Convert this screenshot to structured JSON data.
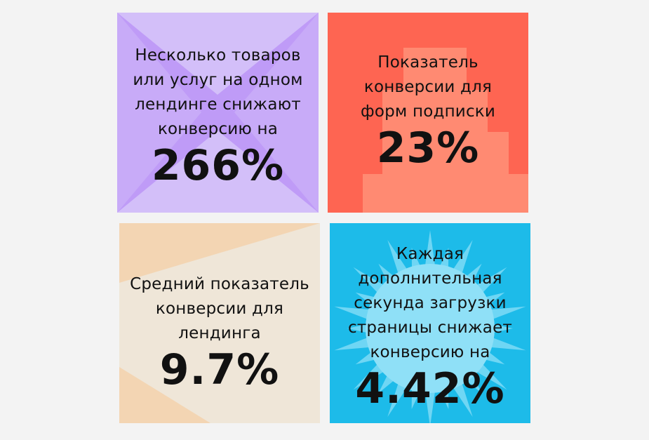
{
  "cards": [
    {
      "lines": [
        "Несколько товаров",
        "или услуг на одном",
        "лендинге снижают",
        "конверсию на"
      ],
      "value": "266%",
      "color": "#bf9bf7"
    },
    {
      "lines": [
        "Показатель",
        "конверсии для",
        "форм подписки"
      ],
      "value": "23%",
      "color": "#fe6552"
    },
    {
      "lines": [
        "Средний показатель",
        "конверсии для",
        "лендинга"
      ],
      "value": "9.7%",
      "color": "#efe6d8"
    },
    {
      "lines": [
        "Каждая",
        "дополнительная",
        "секунда загрузки",
        "страницы снижает",
        "конверсию на"
      ],
      "value": "4.42%",
      "color": "#1dbbe9"
    }
  ]
}
